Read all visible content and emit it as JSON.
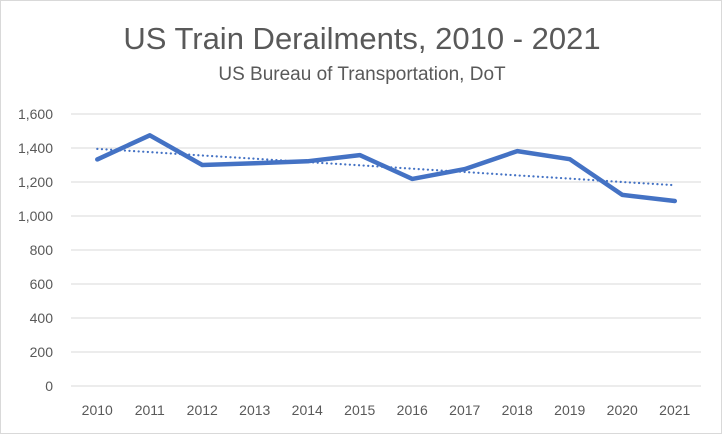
{
  "chart_data": {
    "type": "line",
    "title": "US Train Derailments, 2010 - 2021",
    "subtitle": "US Bureau of Transportation, DoT",
    "categories": [
      "2010",
      "2011",
      "2012",
      "2013",
      "2014",
      "2015",
      "2016",
      "2017",
      "2018",
      "2019",
      "2020",
      "2021"
    ],
    "series": [
      {
        "values": [
          1333,
          1475,
          1300,
          1310,
          1322,
          1358,
          1218,
          1276,
          1382,
          1334,
          1124,
          1088
        ],
        "color": "#4472c4",
        "style": "solid"
      },
      {
        "type": "linear-trendline",
        "values": [
          1395,
          1376,
          1356,
          1337,
          1317,
          1298,
          1278,
          1259,
          1239,
          1220,
          1200,
          1181
        ],
        "color": "#4472c4",
        "style": "dotted"
      }
    ],
    "ylim": [
      0,
      1600
    ],
    "yticks": [
      0,
      200,
      400,
      600,
      800,
      1000,
      1200,
      1400,
      1600
    ],
    "ytick_labels": [
      "0",
      "200",
      "400",
      "600",
      "800",
      "1,000",
      "1,200",
      "1,400",
      "1,600"
    ],
    "grid": true,
    "legend": "none"
  }
}
